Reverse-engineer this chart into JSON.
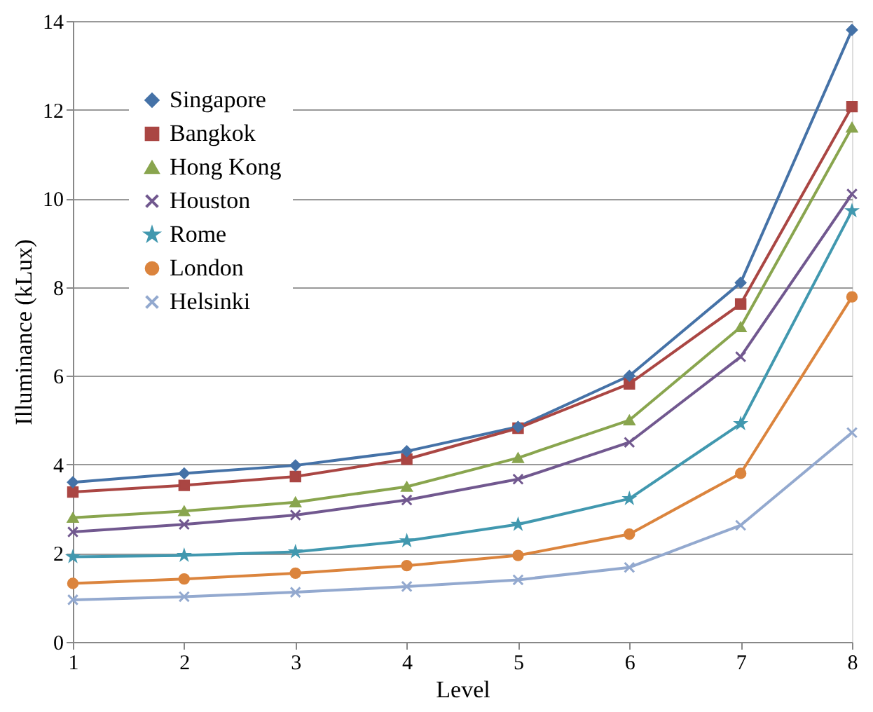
{
  "chart_data": {
    "type": "line",
    "xlabel": "Level",
    "ylabel": "Illuminance (kLux)",
    "x": [
      1,
      2,
      3,
      4,
      5,
      6,
      7,
      8
    ],
    "xlim": [
      1,
      8
    ],
    "xticks": [
      1,
      2,
      3,
      4,
      5,
      6,
      7,
      8
    ],
    "ylim": [
      0,
      14
    ],
    "yticks": [
      0,
      2,
      4,
      6,
      8,
      10,
      12,
      14
    ],
    "grid": "y",
    "legend": "top left",
    "series": [
      {
        "name": "Singapore",
        "color": "#4572a7",
        "marker": "diamond",
        "values": [
          3.6,
          3.8,
          3.98,
          4.3,
          4.85,
          6.0,
          8.1,
          13.8
        ]
      },
      {
        "name": "Bangkok",
        "color": "#aa4643",
        "marker": "square",
        "values": [
          3.38,
          3.53,
          3.73,
          4.12,
          4.82,
          5.82,
          7.62,
          12.07
        ]
      },
      {
        "name": "Hong Kong",
        "color": "#89a54e",
        "marker": "triangle",
        "values": [
          2.8,
          2.95,
          3.15,
          3.5,
          4.15,
          5.0,
          7.1,
          11.6
        ]
      },
      {
        "name": "Houston",
        "color": "#71588f",
        "marker": "cross",
        "values": [
          2.48,
          2.65,
          2.86,
          3.2,
          3.67,
          4.5,
          6.43,
          10.1
        ]
      },
      {
        "name": "Rome",
        "color": "#4198af",
        "marker": "star",
        "values": [
          1.92,
          1.95,
          2.03,
          2.28,
          2.65,
          3.23,
          4.92,
          9.72
        ]
      },
      {
        "name": "London",
        "color": "#db843d",
        "marker": "circle",
        "values": [
          1.32,
          1.42,
          1.55,
          1.72,
          1.95,
          2.43,
          3.8,
          7.78
        ]
      },
      {
        "name": "Helsinki",
        "color": "#93a9cf",
        "marker": "cross",
        "values": [
          0.95,
          1.02,
          1.12,
          1.25,
          1.4,
          1.68,
          2.63,
          4.72
        ]
      }
    ]
  }
}
